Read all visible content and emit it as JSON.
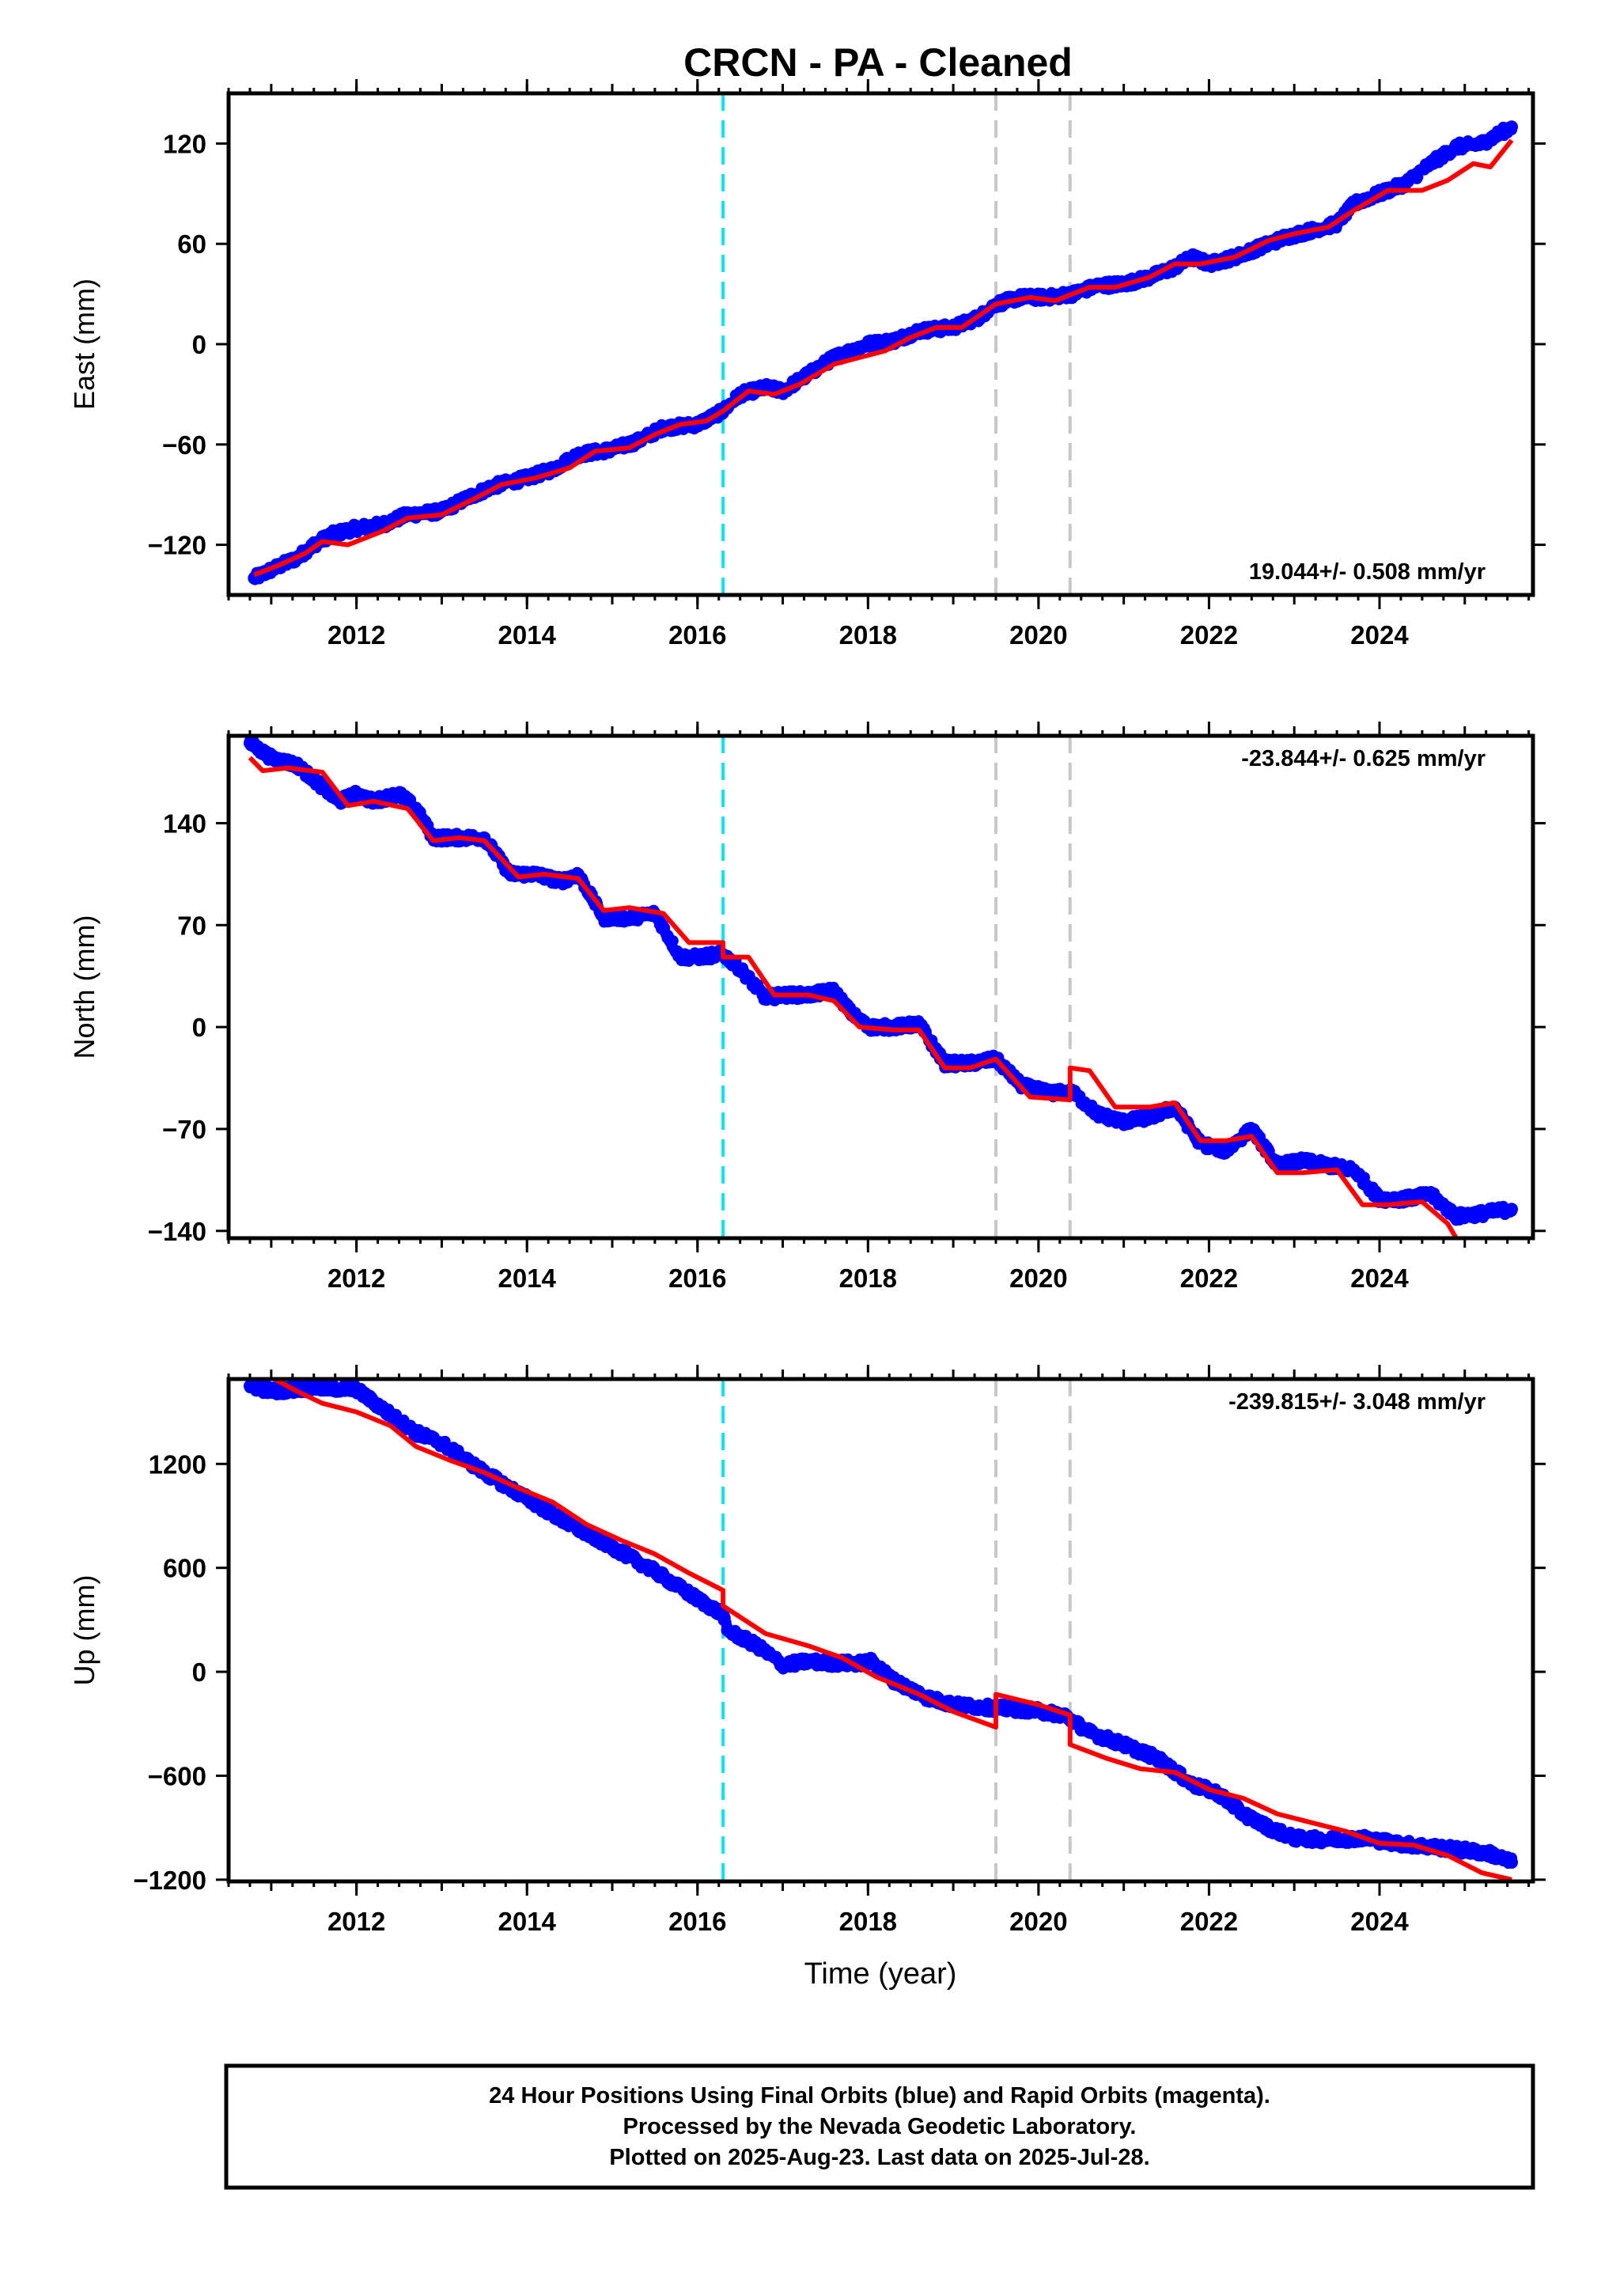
{
  "title": "CRCN  - PA - Cleaned",
  "x_axis_label": "Time (year)",
  "footer": {
    "line1": "24 Hour Positions Using Final Orbits (blue) and Rapid Orbits (magenta).",
    "line2": "Processed by the Nevada Geodetic Laboratory.",
    "line3": "Plotted on 2025-Aug-23. Last data on 2025-Jul-28."
  },
  "colors": {
    "final_orbits": "#0000ff",
    "model": "#ff0000",
    "antenna_change": "#00e5ee",
    "equipment_change": "#c8c8c8"
  },
  "chart_data": [
    {
      "type": "scatter",
      "ylabel": "East (mm)",
      "xlim": [
        2010.5,
        2025.8
      ],
      "ylim": [
        -150,
        150
      ],
      "yticks": [
        -120,
        -60,
        0,
        60,
        120
      ],
      "xticks": [
        2012,
        2014,
        2016,
        2018,
        2020,
        2022,
        2024
      ],
      "grid": false,
      "rate_label": "19.044+/- 0.508 mm/yr",
      "rate_position": "bottom-right",
      "vlines": [
        {
          "x": 2016.3,
          "style": "cyan-dashed"
        },
        {
          "x": 2019.5,
          "style": "gray-dashed"
        },
        {
          "x": 2020.37,
          "style": "gray-dashed"
        }
      ],
      "series": [
        {
          "role": "observed",
          "style": "blue-dots",
          "x": [
            2010.8,
            2011.0,
            2011.3,
            2011.5,
            2011.7,
            2012.0,
            2012.3,
            2012.6,
            2013.0,
            2013.3,
            2013.6,
            2014.0,
            2014.3,
            2014.6,
            2015.0,
            2015.3,
            2015.6,
            2016.0,
            2016.3,
            2016.5,
            2016.8,
            2017.0,
            2017.3,
            2017.6,
            2018.0,
            2018.3,
            2018.6,
            2019.0,
            2019.3,
            2019.5,
            2019.8,
            2020.1,
            2020.4,
            2020.7,
            2021.0,
            2021.3,
            2021.6,
            2021.8,
            2022.0,
            2022.3,
            2022.6,
            2022.9,
            2023.2,
            2023.5,
            2023.7,
            2024.0,
            2024.3,
            2024.6,
            2024.9,
            2025.2,
            2025.55
          ],
          "y": [
            -140,
            -135,
            -128,
            -120,
            -114,
            -110,
            -108,
            -102,
            -100,
            -92,
            -85,
            -80,
            -75,
            -66,
            -63,
            -58,
            -50,
            -48,
            -40,
            -30,
            -26,
            -28,
            -18,
            -8,
            0,
            2,
            8,
            10,
            16,
            24,
            28,
            28,
            30,
            35,
            36,
            40,
            46,
            52,
            48,
            52,
            58,
            64,
            68,
            72,
            84,
            90,
            96,
            108,
            118,
            120,
            130
          ]
        },
        {
          "role": "model",
          "style": "red-line",
          "x": [
            2010.8,
            2011.1,
            2011.4,
            2011.6,
            2011.9,
            2012.3,
            2012.6,
            2013.0,
            2013.4,
            2013.7,
            2014.1,
            2014.5,
            2014.8,
            2015.2,
            2015.5,
            2015.8,
            2016.1,
            2016.3,
            2016.6,
            2016.9,
            2017.2,
            2017.6,
            2017.9,
            2018.2,
            2018.5,
            2018.8,
            2019.1,
            2019.5,
            2019.9,
            2020.2,
            2020.6,
            2020.9,
            2021.3,
            2021.6,
            2021.9,
            2022.3,
            2022.7,
            2023.0,
            2023.4,
            2023.7,
            2024.1,
            2024.5,
            2024.8,
            2025.1,
            2025.3,
            2025.55
          ],
          "y": [
            -138,
            -132,
            -125,
            -118,
            -120,
            -112,
            -104,
            -102,
            -92,
            -84,
            -80,
            -74,
            -64,
            -62,
            -54,
            -48,
            -46,
            -40,
            -28,
            -30,
            -24,
            -12,
            -8,
            -4,
            4,
            10,
            10,
            24,
            28,
            26,
            34,
            34,
            40,
            48,
            48,
            52,
            62,
            66,
            70,
            80,
            92,
            92,
            98,
            108,
            106,
            122
          ]
        }
      ]
    },
    {
      "type": "scatter",
      "ylabel": "North (mm)",
      "xlim": [
        2010.5,
        2025.8
      ],
      "ylim": [
        -145,
        200
      ],
      "yticks": [
        -140,
        -70,
        0,
        70,
        140
      ],
      "xticks": [
        2012,
        2014,
        2016,
        2018,
        2020,
        2022,
        2024
      ],
      "grid": false,
      "rate_label": "-23.844+/- 0.625 mm/yr",
      "rate_position": "top-right",
      "vlines": [
        {
          "x": 2016.3,
          "style": "cyan-dashed"
        },
        {
          "x": 2019.5,
          "style": "gray-dashed"
        },
        {
          "x": 2020.37,
          "style": "gray-dashed"
        }
      ],
      "series": [
        {
          "role": "observed",
          "style": "blue-dots",
          "x": [
            2010.75,
            2011.0,
            2011.3,
            2011.6,
            2011.8,
            2012.0,
            2012.2,
            2012.5,
            2012.7,
            2012.9,
            2013.2,
            2013.5,
            2013.8,
            2014.1,
            2014.4,
            2014.6,
            2014.9,
            2015.2,
            2015.5,
            2015.8,
            2016.0,
            2016.3,
            2016.5,
            2016.8,
            2017.0,
            2017.3,
            2017.6,
            2017.8,
            2018.0,
            2018.3,
            2018.6,
            2018.9,
            2019.2,
            2019.5,
            2019.8,
            2020.1,
            2020.4,
            2020.7,
            2021.0,
            2021.3,
            2021.6,
            2021.9,
            2022.2,
            2022.5,
            2022.8,
            2023.1,
            2023.4,
            2023.7,
            2024.0,
            2024.3,
            2024.6,
            2024.9,
            2025.2,
            2025.55
          ],
          "y": [
            195,
            185,
            180,
            165,
            155,
            160,
            155,
            160,
            150,
            130,
            130,
            130,
            105,
            105,
            100,
            105,
            75,
            75,
            78,
            48,
            48,
            50,
            40,
            20,
            22,
            22,
            25,
            10,
            0,
            0,
            2,
            -25,
            -25,
            -22,
            -40,
            -45,
            -45,
            -60,
            -65,
            -62,
            -55,
            -80,
            -85,
            -70,
            -95,
            -92,
            -95,
            -98,
            -118,
            -118,
            -115,
            -130,
            -128,
            -125
          ]
        },
        {
          "role": "model",
          "style": "red-line",
          "x": [
            2010.75,
            2010.9,
            2011.2,
            2011.6,
            2011.9,
            2012.2,
            2012.6,
            2012.9,
            2013.2,
            2013.5,
            2013.9,
            2014.2,
            2014.6,
            2014.9,
            2015.2,
            2015.6,
            2015.9,
            2016.3,
            2016.3,
            2016.6,
            2016.9,
            2017.3,
            2017.6,
            2017.9,
            2018.3,
            2018.6,
            2018.9,
            2019.2,
            2019.5,
            2019.9,
            2020.37,
            2020.37,
            2020.6,
            2020.9,
            2021.3,
            2021.6,
            2021.9,
            2022.2,
            2022.5,
            2022.8,
            2023.1,
            2023.5,
            2023.8,
            2024.1,
            2024.5,
            2024.8,
            2024.95
          ],
          "y": [
            185,
            176,
            178,
            175,
            152,
            155,
            150,
            128,
            130,
            128,
            103,
            105,
            102,
            80,
            82,
            78,
            58,
            58,
            48,
            48,
            22,
            22,
            18,
            0,
            -2,
            -2,
            -28,
            -28,
            -22,
            -48,
            -50,
            -28,
            -30,
            -55,
            -55,
            -52,
            -78,
            -78,
            -75,
            -100,
            -100,
            -98,
            -122,
            -122,
            -120,
            -135,
            -150
          ]
        }
      ]
    },
    {
      "type": "scatter",
      "ylabel": "Up (mm)",
      "xlim": [
        2010.5,
        2025.8
      ],
      "ylim": [
        -1210,
        1690
      ],
      "yticks": [
        -1200,
        -600,
        0,
        600,
        1200
      ],
      "xticks": [
        2012,
        2014,
        2016,
        2018,
        2020,
        2022,
        2024
      ],
      "grid": false,
      "rate_label": "-239.815+/- 3.048 mm/yr",
      "rate_position": "top-right",
      "vlines": [
        {
          "x": 2016.3,
          "style": "cyan-dashed"
        },
        {
          "x": 2019.5,
          "style": "gray-dashed"
        },
        {
          "x": 2020.37,
          "style": "gray-dashed"
        }
      ],
      "series": [
        {
          "role": "observed",
          "style": "blue-dots",
          "x": [
            2010.75,
            2011.0,
            2011.5,
            2012.0,
            2012.3,
            2012.7,
            2013.0,
            2013.5,
            2014.0,
            2014.5,
            2015.0,
            2015.5,
            2016.0,
            2016.3,
            2016.35,
            2016.7,
            2017.0,
            2017.3,
            2017.6,
            2017.9,
            2018.05,
            2018.3,
            2018.7,
            2019.0,
            2019.5,
            2019.9,
            2020.3,
            2020.6,
            2021.0,
            2021.4,
            2021.8,
            2022.1,
            2022.4,
            2022.7,
            2023.0,
            2023.4,
            2023.8,
            2024.2,
            2024.6,
            2025.0,
            2025.3,
            2025.55
          ],
          "y": [
            1650,
            1620,
            1640,
            1630,
            1520,
            1380,
            1320,
            1150,
            1000,
            850,
            720,
            580,
            420,
            330,
            240,
            150,
            40,
            60,
            50,
            50,
            60,
            -50,
            -150,
            -190,
            -210,
            -220,
            -250,
            -350,
            -420,
            -500,
            -650,
            -700,
            -820,
            -900,
            -960,
            -970,
            -960,
            -990,
            -1010,
            -1030,
            -1050,
            -1100
          ]
        },
        {
          "role": "model",
          "style": "red-line",
          "x": [
            2011.0,
            2011.3,
            2011.6,
            2012.0,
            2012.4,
            2012.7,
            2013.1,
            2013.5,
            2013.9,
            2014.3,
            2014.7,
            2015.1,
            2015.5,
            2015.9,
            2016.3,
            2016.3,
            2016.8,
            2017.3,
            2017.7,
            2018.1,
            2018.6,
            2019.0,
            2019.5,
            2019.5,
            2020.0,
            2020.37,
            2020.37,
            2020.8,
            2021.2,
            2021.6,
            2022.0,
            2022.4,
            2022.8,
            2023.2,
            2023.6,
            2024.0,
            2024.4,
            2024.8,
            2025.2,
            2025.55
          ],
          "y": [
            1700,
            1620,
            1550,
            1500,
            1420,
            1300,
            1220,
            1150,
            1060,
            980,
            850,
            760,
            680,
            570,
            470,
            380,
            220,
            150,
            80,
            -30,
            -130,
            -230,
            -320,
            -130,
            -190,
            -250,
            -420,
            -500,
            -560,
            -580,
            -680,
            -730,
            -820,
            -870,
            -920,
            -990,
            -1000,
            -1060,
            -1160,
            -1200
          ]
        }
      ]
    }
  ]
}
